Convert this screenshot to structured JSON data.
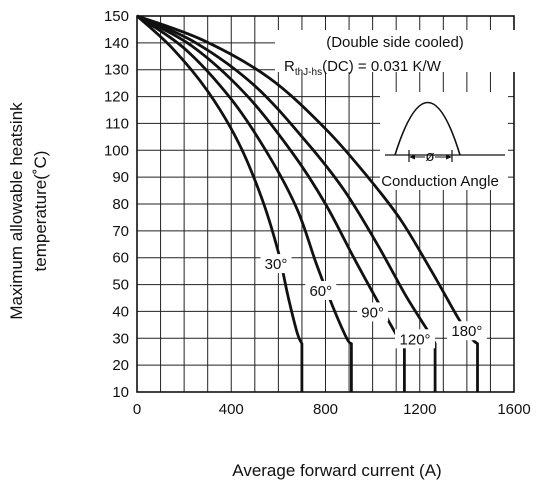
{
  "chart_data": {
    "type": "line",
    "title": "",
    "xlabel": "Average forward current (A)",
    "ylabel_lines": [
      "Maximum allowable heatsink",
      "temperature(˚C)"
    ],
    "xlim": [
      0,
      1600
    ],
    "ylim": [
      10,
      150
    ],
    "xticks": [
      0,
      400,
      800,
      1200,
      1600
    ],
    "yticks": [
      10,
      20,
      30,
      40,
      50,
      60,
      70,
      80,
      90,
      100,
      110,
      120,
      130,
      140,
      150
    ],
    "grid": true,
    "annotations": {
      "cooling": "(Double side cooled)",
      "rth_main": "R",
      "rth_sub": "thJ-hs",
      "rth_rest": "(DC) = 0.031 K/W",
      "conduction": "Conduction Angle",
      "phi": "ø"
    },
    "series": [
      {
        "name": "30°",
        "points": [
          [
            0,
            150
          ],
          [
            150,
            138
          ],
          [
            300,
            122
          ],
          [
            430,
            103
          ],
          [
            530,
            82
          ],
          [
            600,
            62
          ],
          [
            640,
            46
          ],
          [
            680,
            32
          ],
          [
            700,
            28
          ],
          [
            700,
            10
          ]
        ]
      },
      {
        "name": "60°",
        "points": [
          [
            0,
            150
          ],
          [
            200,
            138
          ],
          [
            400,
            119
          ],
          [
            560,
            98
          ],
          [
            680,
            78
          ],
          [
            760,
            58
          ],
          [
            830,
            42
          ],
          [
            890,
            30
          ],
          [
            910,
            28
          ],
          [
            910,
            10
          ]
        ]
      },
      {
        "name": "90°",
        "points": [
          [
            0,
            150
          ],
          [
            230,
            139
          ],
          [
            460,
            121
          ],
          [
            660,
            99
          ],
          [
            800,
            80
          ],
          [
            920,
            60
          ],
          [
            1020,
            44
          ],
          [
            1110,
            30
          ],
          [
            1135,
            28
          ],
          [
            1135,
            10
          ]
        ]
      },
      {
        "name": "120°",
        "points": [
          [
            0,
            150
          ],
          [
            250,
            140
          ],
          [
            500,
            124
          ],
          [
            720,
            103
          ],
          [
            880,
            85
          ],
          [
            1020,
            65
          ],
          [
            1140,
            46
          ],
          [
            1240,
            32
          ],
          [
            1265,
            28
          ],
          [
            1265,
            10
          ]
        ]
      },
      {
        "name": "180°",
        "points": [
          [
            0,
            150
          ],
          [
            280,
            141
          ],
          [
            560,
            127
          ],
          [
            800,
            108
          ],
          [
            980,
            90
          ],
          [
            1120,
            74
          ],
          [
            1250,
            55
          ],
          [
            1360,
            38
          ],
          [
            1420,
            30
          ],
          [
            1445,
            28
          ],
          [
            1445,
            10
          ]
        ]
      }
    ],
    "series_label_positions": [
      [
        590,
        58
      ],
      [
        780,
        48
      ],
      [
        1000,
        40
      ],
      [
        1180,
        30
      ],
      [
        1400,
        33
      ]
    ]
  }
}
